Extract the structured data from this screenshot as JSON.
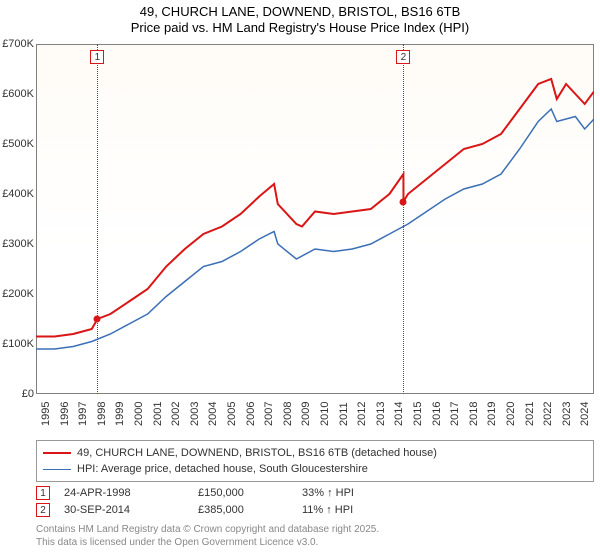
{
  "title": {
    "line1": "49, CHURCH LANE, DOWNEND, BRISTOL, BS16 6TB",
    "line2": "Price paid vs. HM Land Registry's House Price Index (HPI)"
  },
  "chart": {
    "type": "line",
    "background_color": "#ffffff",
    "grid_color": "#c0c0c0",
    "border_color": "#808080",
    "x": {
      "min": 1995,
      "max": 2025,
      "ticks": [
        1995,
        1996,
        1997,
        1998,
        1999,
        2000,
        2001,
        2002,
        2003,
        2004,
        2005,
        2006,
        2007,
        2008,
        2009,
        2010,
        2011,
        2012,
        2013,
        2014,
        2015,
        2016,
        2017,
        2018,
        2019,
        2020,
        2021,
        2022,
        2023,
        2024
      ]
    },
    "y": {
      "min": 0,
      "max": 700000,
      "ticks": [
        0,
        100000,
        200000,
        300000,
        400000,
        500000,
        600000,
        700000
      ],
      "tick_labels": [
        "£0",
        "£100K",
        "£200K",
        "£300K",
        "£400K",
        "£500K",
        "£600K",
        "£700K"
      ]
    },
    "series": [
      {
        "id": "price_paid",
        "label": "49, CHURCH LANE, DOWNEND, BRISTOL, BS16 6TB (detached house)",
        "color": "#d91515",
        "line_width": 2,
        "x": [
          1995,
          1996,
          1997,
          1998,
          1998.3,
          1999,
          2000,
          2001,
          2002,
          2003,
          2004,
          2005,
          2006,
          2007,
          2007.8,
          2008,
          2009,
          2009.3,
          2010,
          2011,
          2012,
          2013,
          2014,
          2014.75,
          2014.76,
          2015,
          2016,
          2017,
          2018,
          2019,
          2020,
          2021,
          2022,
          2022.7,
          2023,
          2023.5,
          2024,
          2024.5,
          2025
        ],
        "y": [
          115000,
          115000,
          120000,
          130000,
          150000,
          160000,
          185000,
          210000,
          255000,
          290000,
          320000,
          335000,
          360000,
          395000,
          420000,
          380000,
          340000,
          335000,
          365000,
          360000,
          365000,
          370000,
          400000,
          440000,
          385000,
          400000,
          430000,
          460000,
          490000,
          500000,
          520000,
          570000,
          620000,
          630000,
          590000,
          620000,
          600000,
          580000,
          605000
        ]
      },
      {
        "id": "hpi",
        "label": "HPI: Average price, detached house, South Gloucestershire",
        "color": "#3a6fb7",
        "line_width": 1.5,
        "x": [
          1995,
          1996,
          1997,
          1998,
          1999,
          2000,
          2001,
          2002,
          2003,
          2004,
          2005,
          2006,
          2007,
          2007.8,
          2008,
          2009,
          2010,
          2011,
          2012,
          2013,
          2014,
          2015,
          2016,
          2017,
          2018,
          2019,
          2020,
          2021,
          2022,
          2022.7,
          2023,
          2024,
          2024.5,
          2025
        ],
        "y": [
          90000,
          90000,
          95000,
          105000,
          120000,
          140000,
          160000,
          195000,
          225000,
          255000,
          265000,
          285000,
          310000,
          325000,
          300000,
          270000,
          290000,
          285000,
          290000,
          300000,
          320000,
          340000,
          365000,
          390000,
          410000,
          420000,
          440000,
          490000,
          545000,
          570000,
          545000,
          555000,
          530000,
          550000
        ]
      }
    ],
    "markers": [
      {
        "n": "1",
        "x": 1998.3,
        "color": "#d91515"
      },
      {
        "n": "2",
        "x": 2014.75,
        "color": "#d91515"
      }
    ],
    "sale_points": [
      {
        "x": 1998.3,
        "y": 150000,
        "color": "#d91515"
      },
      {
        "x": 2014.75,
        "y": 385000,
        "color": "#d91515"
      }
    ]
  },
  "legend": {
    "rows": [
      {
        "color": "#d91515",
        "width": 2,
        "label": "49, CHURCH LANE, DOWNEND, BRISTOL, BS16 6TB (detached house)"
      },
      {
        "color": "#3a6fb7",
        "width": 1.5,
        "label": "HPI: Average price, detached house, South Gloucestershire"
      }
    ]
  },
  "sales": [
    {
      "n": "1",
      "color": "#d91515",
      "date": "24-APR-1998",
      "price": "£150,000",
      "hpi": "33% ↑ HPI"
    },
    {
      "n": "2",
      "color": "#d91515",
      "date": "30-SEP-2014",
      "price": "£385,000",
      "hpi": "11% ↑ HPI"
    }
  ],
  "footer": {
    "line1": "Contains HM Land Registry data © Crown copyright and database right 2025.",
    "line2": "This data is licensed under the Open Government Licence v3.0."
  }
}
